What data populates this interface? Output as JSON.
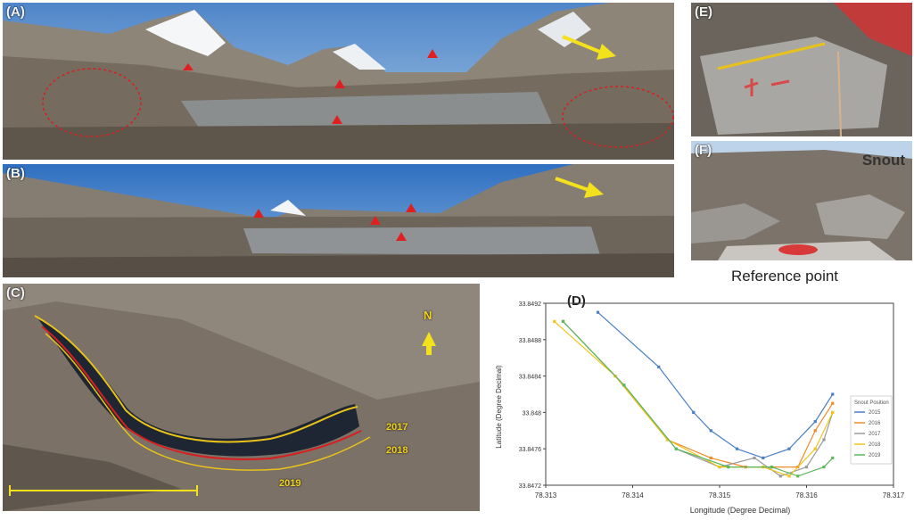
{
  "panels": {
    "a": {
      "label": "(A)"
    },
    "b": {
      "label": "(B)"
    },
    "c": {
      "label": "(C)",
      "years": [
        "2017",
        "2018",
        "2019"
      ],
      "north": "N"
    },
    "d": {
      "label": "(D)"
    },
    "e": {
      "label": "(E)"
    },
    "f": {
      "label": "(F)",
      "snout": "Snout",
      "reference": "Reference point"
    }
  },
  "colors": {
    "line2017": "#d81e1e",
    "line2018": "#e8c21a",
    "arrow": "#f2e11c",
    "marker": "#e02020"
  },
  "chart_data": {
    "type": "line",
    "xlabel": "Longitude (Degree Decimal)",
    "ylabel": "Latitude (Degree Decimal)",
    "xlim": [
      78.313,
      78.317
    ],
    "ylim": [
      33.8472,
      33.8492
    ],
    "xticks": [
      "78.313",
      "78.314",
      "78.315",
      "78.316",
      "78.317"
    ],
    "yticks": [
      "33.8472",
      "33.8476",
      "33.848",
      "33.8484",
      "33.8488",
      "33.8492"
    ],
    "legend_title": "Snout Position",
    "legend": "right",
    "series": [
      {
        "name": "2015",
        "color": "#4a7fc1",
        "x": [
          78.3136,
          78.3143,
          78.3147,
          78.3149,
          78.3152,
          78.3155,
          78.3158,
          78.3161,
          78.3163
        ],
        "y": [
          33.8491,
          33.8485,
          33.848,
          33.8478,
          33.8476,
          33.8475,
          33.8476,
          33.8479,
          33.8482
        ]
      },
      {
        "name": "2016",
        "color": "#f08a2a",
        "x": [
          78.3132,
          78.3138,
          78.3144,
          78.3149,
          78.3153,
          78.3156,
          78.3159,
          78.3161,
          78.3163
        ],
        "y": [
          33.849,
          33.8484,
          33.8477,
          33.8475,
          33.8474,
          33.8474,
          33.8474,
          33.8478,
          33.8481
        ]
      },
      {
        "name": "2017",
        "color": "#9a9a9a",
        "x": [
          78.3132,
          78.3139,
          78.3145,
          78.315,
          78.3154,
          78.3157,
          78.316,
          78.3162,
          78.3163
        ],
        "y": [
          33.849,
          33.8483,
          33.8476,
          33.8474,
          33.8475,
          33.8473,
          33.8474,
          33.8477,
          33.848
        ]
      },
      {
        "name": "2018",
        "color": "#f0c419",
        "x": [
          78.3131,
          78.3138,
          78.3144,
          78.315,
          78.3155,
          78.3158,
          78.3161,
          78.3163
        ],
        "y": [
          33.849,
          33.8484,
          33.8477,
          33.8474,
          33.8474,
          33.8473,
          33.8476,
          33.848
        ]
      },
      {
        "name": "2019",
        "color": "#5bb85b",
        "x": [
          78.3132,
          78.3139,
          78.3145,
          78.3151,
          78.3156,
          78.3159,
          78.3162,
          78.3163
        ],
        "y": [
          33.849,
          33.8483,
          33.8476,
          33.8474,
          33.8474,
          33.8473,
          33.8474,
          33.8475
        ]
      }
    ]
  }
}
